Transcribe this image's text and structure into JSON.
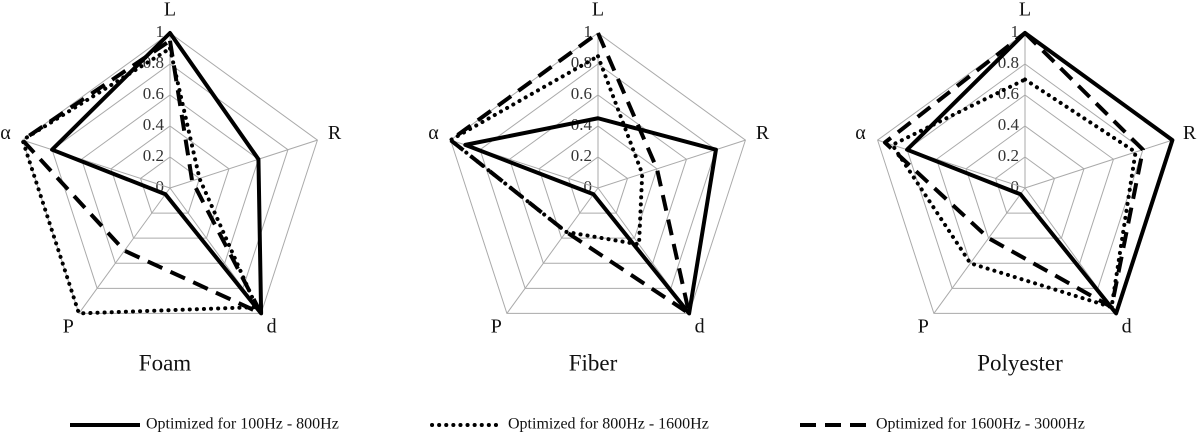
{
  "chart_data": [
    {
      "type": "radar",
      "title": "Foam",
      "categories": [
        "L",
        "R",
        "d",
        "P",
        "α"
      ],
      "ylim": [
        0,
        1
      ],
      "yticks": [
        0,
        0.2,
        0.4,
        0.6,
        0.8,
        1
      ],
      "series": [
        {
          "style": "solid",
          "color": "#000000",
          "values": [
            1,
            0.6,
            1,
            0.05,
            0.8
          ]
        },
        {
          "style": "dotted",
          "color": "#000000",
          "values": [
            0.9,
            0.2,
            0.95,
            1,
            1
          ]
        },
        {
          "style": "dashed",
          "color": "#000000",
          "values": [
            0.95,
            0.15,
            1,
            0.5,
            1
          ]
        }
      ]
    },
    {
      "type": "radar",
      "title": "Fiber",
      "categories": [
        "L",
        "R",
        "d",
        "P",
        "α"
      ],
      "ylim": [
        0,
        1
      ],
      "yticks": [
        0,
        0.2,
        0.4,
        0.6,
        0.8,
        1
      ],
      "series": [
        {
          "style": "solid",
          "color": "#000000",
          "values": [
            0.45,
            0.8,
            1,
            0.05,
            0.9
          ]
        },
        {
          "style": "dotted",
          "color": "#000000",
          "values": [
            0.85,
            0.3,
            0.45,
            0.35,
            1
          ]
        },
        {
          "style": "dashed",
          "color": "#000000",
          "values": [
            1,
            0.4,
            1,
            0.35,
            1
          ]
        }
      ]
    },
    {
      "type": "radar",
      "title": "Polyester",
      "categories": [
        "L",
        "R",
        "d",
        "P",
        "α"
      ],
      "ylim": [
        0,
        1
      ],
      "yticks": [
        0,
        0.2,
        0.4,
        0.6,
        0.8,
        1
      ],
      "series": [
        {
          "style": "solid",
          "color": "#000000",
          "values": [
            1,
            1,
            1,
            0.05,
            0.8
          ]
        },
        {
          "style": "dotted",
          "color": "#000000",
          "values": [
            0.7,
            0.75,
            0.95,
            0.6,
            0.9
          ]
        },
        {
          "style": "dashed",
          "color": "#000000",
          "values": [
            1,
            0.8,
            0.95,
            0.4,
            0.95
          ]
        }
      ]
    }
  ],
  "legend": [
    {
      "name": "Optimized for 100Hz - 800Hz",
      "style": "solid"
    },
    {
      "name": "Optimized for 800Hz - 1600Hz",
      "style": "dotted"
    },
    {
      "name": "Optimized for 1600Hz - 3000Hz",
      "style": "dashed"
    }
  ]
}
